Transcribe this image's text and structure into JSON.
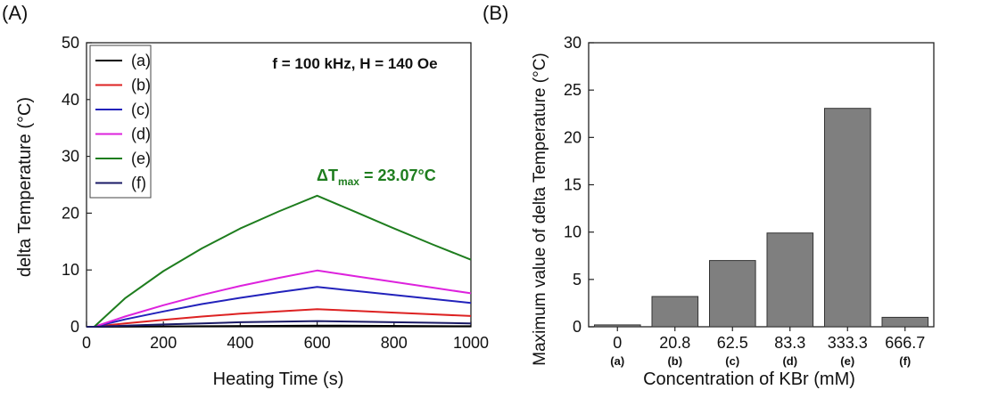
{
  "chart_data": [
    {
      "panel_label": "(A)",
      "type": "line",
      "xlabel": "Heating Time (s)",
      "ylabel": "delta Temperature (°C)",
      "xlim": [
        0,
        1000
      ],
      "ylim": [
        0,
        50
      ],
      "xticks": [
        0,
        200,
        400,
        600,
        800,
        1000
      ],
      "yticks": [
        0,
        10,
        20,
        30,
        40,
        50
      ],
      "grid": false,
      "legend_position": "top-left",
      "annotation": "f = 100 kHz, H = 140 Oe",
      "annotation_dt": {
        "delta": "ΔT",
        "sub": "max",
        "rest": " = 23.07°C",
        "color": "#1e7d1e"
      },
      "series": [
        {
          "name": "(a)",
          "color": "#000000",
          "x": [
            0,
            20,
            600,
            1000
          ],
          "y": [
            0,
            0,
            0.2,
            0.1
          ]
        },
        {
          "name": "(b)",
          "color": "#dd2222",
          "x": [
            0,
            20,
            100,
            200,
            300,
            400,
            500,
            600,
            700,
            800,
            900,
            1000
          ],
          "y": [
            0,
            0,
            0.6,
            1.2,
            1.8,
            2.3,
            2.7,
            3.1,
            2.8,
            2.5,
            2.2,
            1.9
          ]
        },
        {
          "name": "(c)",
          "color": "#2222bb",
          "x": [
            0,
            20,
            100,
            200,
            300,
            400,
            500,
            600,
            700,
            800,
            900,
            1000
          ],
          "y": [
            0,
            0,
            1.3,
            2.7,
            4.0,
            5.1,
            6.1,
            7.0,
            6.3,
            5.6,
            4.9,
            4.2
          ]
        },
        {
          "name": "(d)",
          "color": "#dd22dd",
          "x": [
            0,
            20,
            100,
            200,
            300,
            400,
            500,
            600,
            700,
            800,
            900,
            1000
          ],
          "y": [
            0,
            0,
            1.8,
            3.8,
            5.6,
            7.2,
            8.6,
            9.9,
            8.9,
            7.9,
            6.9,
            5.9
          ]
        },
        {
          "name": "(e)",
          "color": "#1e7d1e",
          "x": [
            0,
            20,
            100,
            200,
            300,
            400,
            500,
            600,
            700,
            800,
            900,
            1000
          ],
          "y": [
            0,
            0,
            5.0,
            9.8,
            13.8,
            17.3,
            20.3,
            23.07,
            20.2,
            17.3,
            14.5,
            11.8
          ]
        },
        {
          "name": "(f)",
          "color": "#1a1a66",
          "x": [
            0,
            20,
            100,
            200,
            300,
            400,
            500,
            600,
            700,
            800,
            900,
            1000
          ],
          "y": [
            0,
            0,
            0.2,
            0.4,
            0.6,
            0.8,
            0.9,
            1.0,
            0.9,
            0.8,
            0.7,
            0.6
          ]
        }
      ]
    },
    {
      "panel_label": "(B)",
      "type": "bar",
      "xlabel": "Concentration of KBr (mM)",
      "ylabel": "Maximum value of delta Temperature (°C)",
      "ylim": [
        0,
        30
      ],
      "yticks": [
        0,
        5,
        10,
        15,
        20,
        25,
        30
      ],
      "categories": [
        "0",
        "20.8",
        "62.5",
        "83.3",
        "333.3",
        "666.7"
      ],
      "sublabels": [
        "(a)",
        "(b)",
        "(c)",
        "(d)",
        "(e)",
        "(f)"
      ],
      "values": [
        0.2,
        3.2,
        7.0,
        9.9,
        23.07,
        1.0
      ],
      "bar_color": "#7f7f7f",
      "grid": false
    }
  ]
}
